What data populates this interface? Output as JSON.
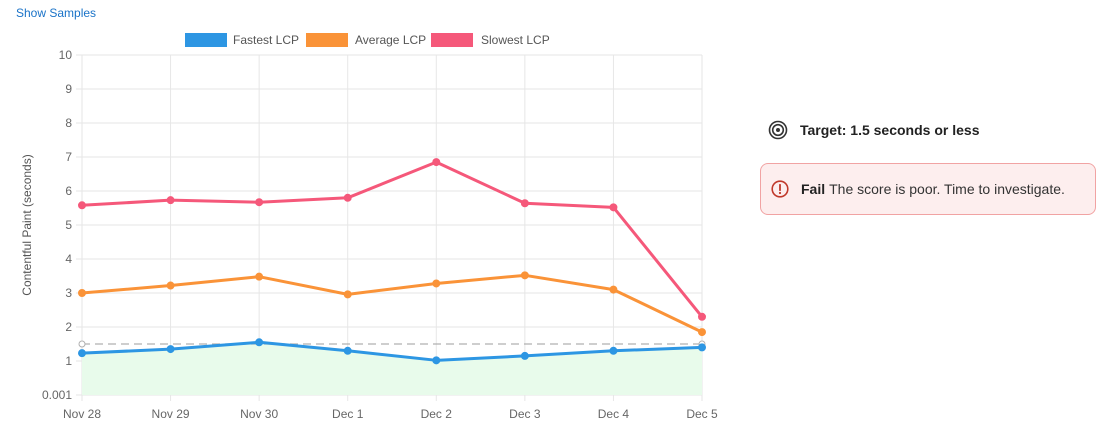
{
  "header": {
    "show_samples_label": "Show Samples"
  },
  "target": {
    "text": "Target: 1.5 seconds or less"
  },
  "result": {
    "status": "Fail",
    "message": "The score is poor. Time to investigate."
  },
  "colors": {
    "fastest": "#2d96e3",
    "average": "#fa9338",
    "slowest": "#f5587a",
    "fill": "#e8fbeb",
    "target_line": "#b0b0b0"
  },
  "chart_data": {
    "type": "line",
    "title": "",
    "ylabel": "Contentful Paint (seconds)",
    "xlabel": "",
    "categories": [
      "Nov 28",
      "Nov 29",
      "Nov 30",
      "Dec 1",
      "Dec 2",
      "Dec 3",
      "Dec 4",
      "Dec 5"
    ],
    "yticks": [
      "0.001",
      "1",
      "2",
      "3",
      "4",
      "5",
      "6",
      "7",
      "8",
      "9",
      "10"
    ],
    "ylim": [
      0,
      10
    ],
    "target": 1.5,
    "series": [
      {
        "name": "Fastest LCP",
        "color_key": "fastest",
        "values": [
          1.23,
          1.35,
          1.55,
          1.3,
          1.02,
          1.15,
          1.3,
          1.4
        ]
      },
      {
        "name": "Average LCP",
        "color_key": "average",
        "values": [
          3.0,
          3.22,
          3.48,
          2.96,
          3.28,
          3.52,
          3.1,
          1.85
        ]
      },
      {
        "name": "Slowest LCP",
        "color_key": "slowest",
        "values": [
          5.58,
          5.73,
          5.67,
          5.8,
          6.85,
          5.64,
          5.52,
          2.3
        ]
      }
    ]
  }
}
